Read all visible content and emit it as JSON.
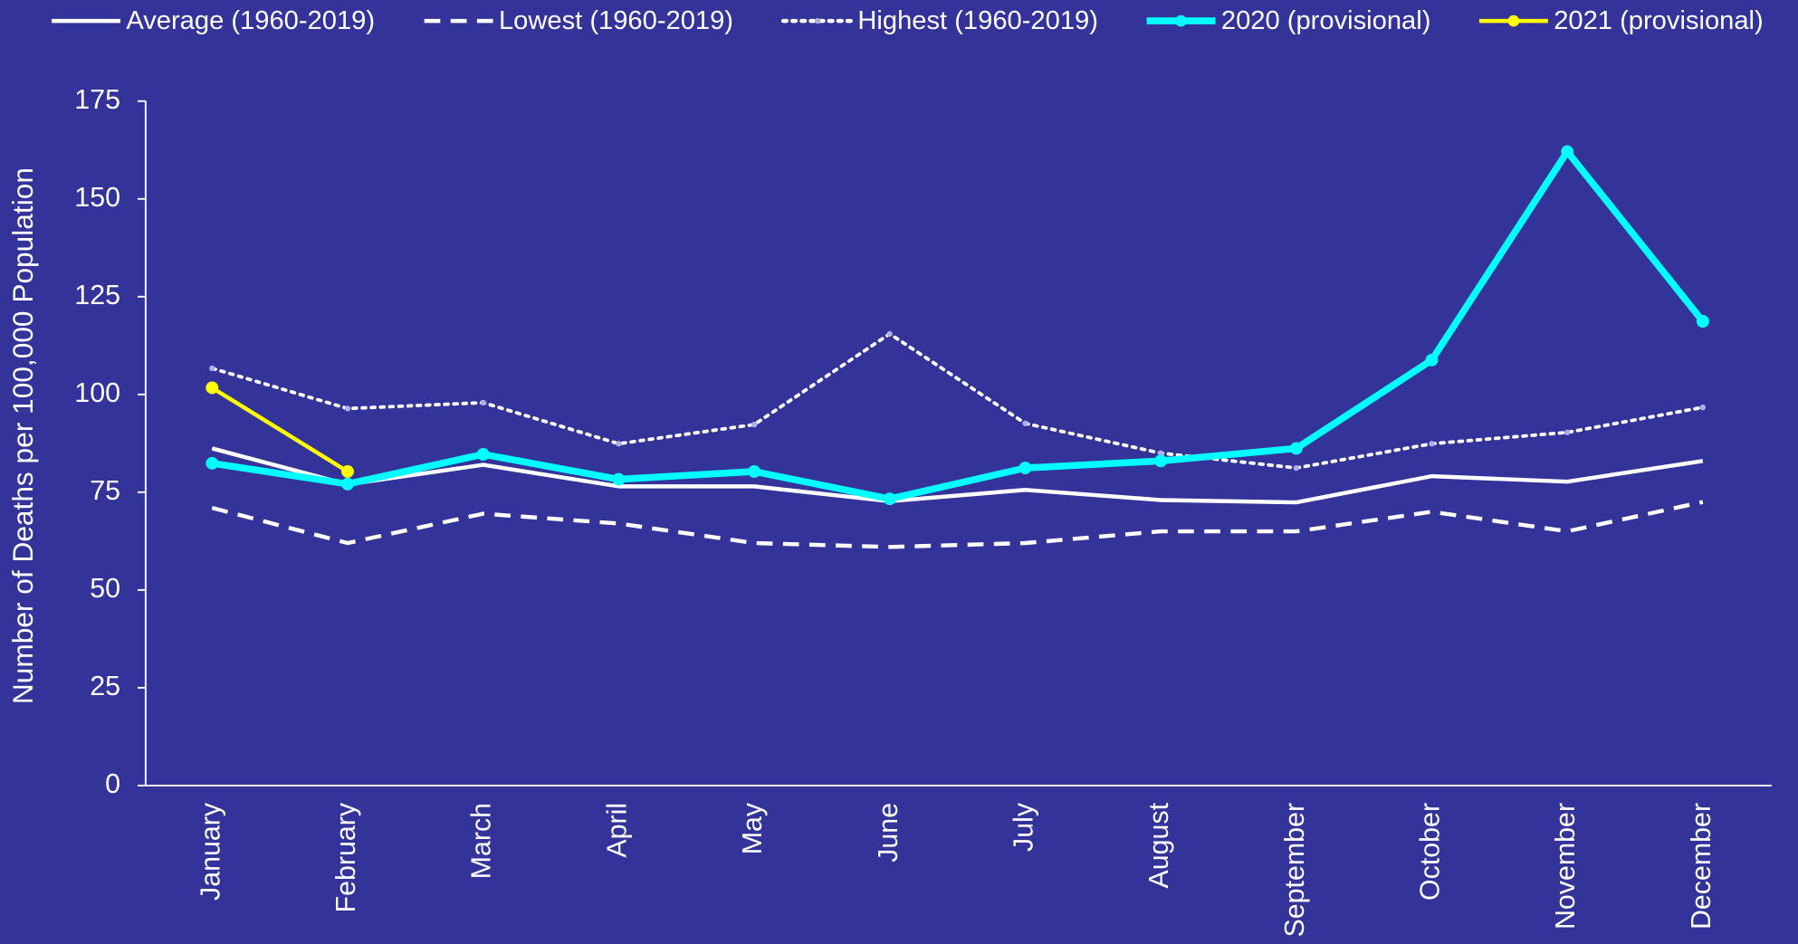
{
  "chart_data": {
    "type": "line",
    "y_label": "Number of Deaths per 100,000 Population",
    "categories": [
      "January",
      "February",
      "March",
      "April",
      "May",
      "June",
      "July",
      "August",
      "September",
      "October",
      "November",
      "December"
    ],
    "series": [
      {
        "name": "Average (1960-2019)",
        "color": "#ffffff",
        "line_style": "solid",
        "marker": false,
        "values": [
          86.2,
          77,
          82,
          76.5,
          76.5,
          72.7,
          75.6,
          73,
          72.4,
          79.1,
          77.7,
          83
        ]
      },
      {
        "name": "Lowest (1960-2019)",
        "color": "#ffffff",
        "line_style": "dashed",
        "marker": false,
        "values": [
          71,
          62,
          69.5,
          67,
          62,
          61,
          62,
          65,
          65,
          70,
          65,
          72.5
        ]
      },
      {
        "name": "Highest (1960-2019)",
        "color": "#ffffff",
        "line_style": "dotted",
        "marker": true,
        "values": [
          106.7,
          96.4,
          97.9,
          87.4,
          92.3,
          115.5,
          92.6,
          85,
          81.2,
          87.4,
          90.3,
          96.7
        ]
      },
      {
        "name": "2020 (provisional)",
        "color": "#00ffff",
        "line_style": "solid",
        "marker": true,
        "values": [
          82.4,
          77.1,
          84.7,
          78.3,
          80.3,
          73.3,
          81.2,
          83,
          86.2,
          108.8,
          162.1,
          118.7
        ]
      },
      {
        "name": "2021 (provisional)",
        "color": "#ffff00",
        "line_style": "solid",
        "marker": true,
        "values": [
          101.7,
          80.3,
          null,
          null,
          null,
          null,
          null,
          null,
          null,
          null,
          null,
          null
        ]
      }
    ],
    "ylim": [
      0,
      175
    ],
    "yticks": [
      0,
      25,
      50,
      75,
      100,
      125,
      150,
      175
    ],
    "grid": false,
    "legend": "top"
  }
}
